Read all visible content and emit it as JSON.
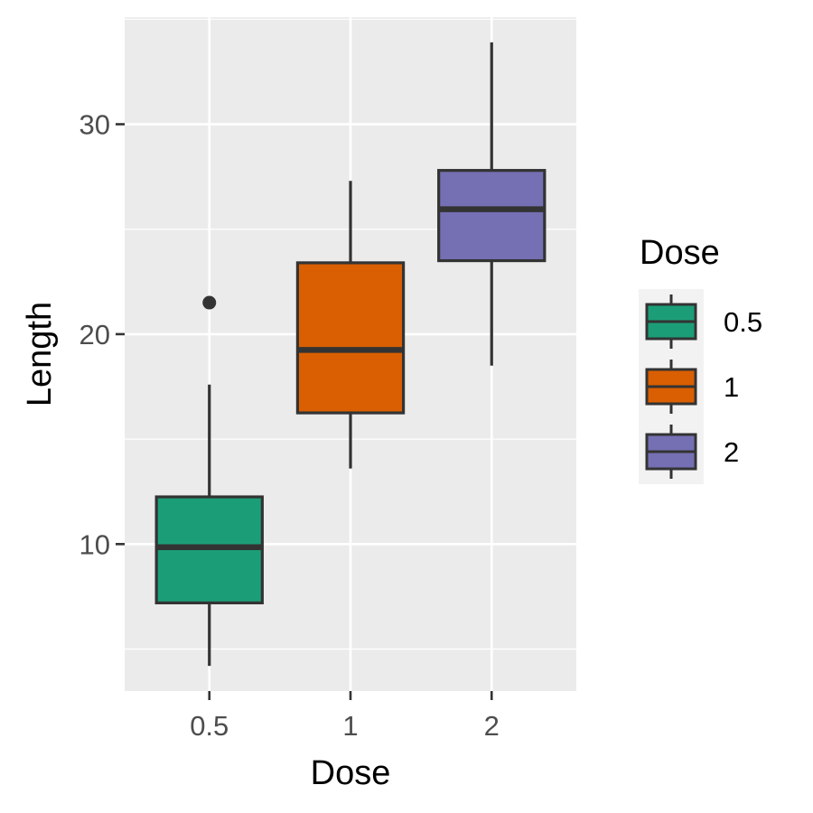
{
  "chart_data": {
    "type": "boxplot",
    "xlabel": "Dose",
    "ylabel": "Length",
    "categories": [
      "0.5",
      "1",
      "2"
    ],
    "boxes": [
      {
        "category": "0.5",
        "min": 4.2,
        "q1": 7.2,
        "median": 9.85,
        "q3": 12.25,
        "max": 17.6,
        "outliers": [
          21.5
        ],
        "color": "#1b9e77"
      },
      {
        "category": "1",
        "min": 13.6,
        "q1": 16.25,
        "median": 19.25,
        "q3": 23.4,
        "max": 27.3,
        "outliers": [],
        "color": "#d95f02"
      },
      {
        "category": "2",
        "min": 18.5,
        "q1": 23.5,
        "median": 25.95,
        "q3": 27.8,
        "max": 33.9,
        "outliers": [],
        "color": "#7570b3"
      }
    ],
    "ylim": [
      3.0,
      35.1
    ],
    "yticks": [
      10,
      20,
      30
    ],
    "yticks_minor": [
      5,
      15,
      25
    ],
    "grid": true,
    "panel_background": "#ebebeb",
    "legend": {
      "title": "Dose",
      "position": "right",
      "entries": [
        {
          "label": "0.5",
          "color": "#1b9e77"
        },
        {
          "label": "1",
          "color": "#d95f02"
        },
        {
          "label": "2",
          "color": "#7570b3"
        }
      ]
    }
  }
}
